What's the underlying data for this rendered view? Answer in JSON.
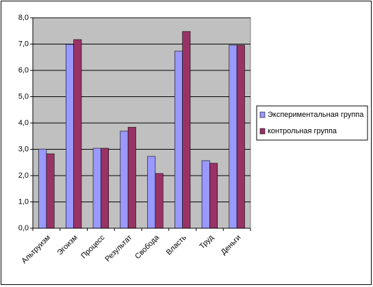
{
  "chart_data": {
    "type": "bar",
    "categories": [
      "Альтруизм",
      "Эгоизм",
      "Процесс",
      "Результат",
      "Свобода",
      "Власть",
      "Труд",
      "Деньги"
    ],
    "series": [
      {
        "name": "Экспериментальная группа",
        "color": "#9999ff",
        "values": [
          3.01,
          6.99,
          3.04,
          3.69,
          2.73,
          6.73,
          2.57,
          6.96
        ]
      },
      {
        "name": "контрольная группа",
        "color": "#993366",
        "values": [
          2.83,
          7.17,
          3.04,
          3.84,
          2.08,
          7.48,
          2.47,
          6.96
        ]
      }
    ],
    "ylim": [
      0,
      8
    ],
    "yticks": [
      {
        "value": 0,
        "label": "0,0"
      },
      {
        "value": 1,
        "label": "1,0"
      },
      {
        "value": 2,
        "label": "2,0"
      },
      {
        "value": 3,
        "label": "3,0"
      },
      {
        "value": 4,
        "label": "4,0"
      },
      {
        "value": 5,
        "label": "5,0"
      },
      {
        "value": 6,
        "label": "6,0"
      },
      {
        "value": 7,
        "label": "7,0"
      },
      {
        "value": 8,
        "label": "8,0"
      }
    ],
    "grid": true,
    "legend": "right",
    "plot_background": "#c0c0c0"
  }
}
